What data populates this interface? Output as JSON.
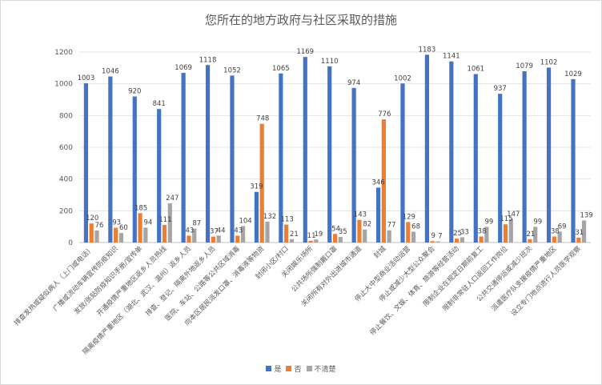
{
  "chart_data": {
    "type": "bar",
    "title": "您所在的地方政府与社区采取的措施",
    "ylim": [
      0,
      1200
    ],
    "yticks": [
      "0",
      "200",
      "400",
      "600",
      "800",
      "1000",
      "1200"
    ],
    "grid": true,
    "legend_position": "bottom",
    "colors": [
      "#4472C4",
      "#ED7D31",
      "#A5A5A5"
    ],
    "categories": [
      "排查发热或疑似病人（上门或电话）",
      "广播或流动车辆宣传防疫知识",
      "发放/张贴防疫知识手册/宣传单",
      "开通疫情严重地区返乡人员热线",
      "隔离疫情严重地区（湖北、武汉、温州）返乡人员",
      "排查、登记、隔离外地返乡人员",
      "医院、车站、公路等公共区域消毒",
      "向本区居民派发口罩、消毒液等物资",
      "封闭小区/村口",
      "关闭娱乐场所",
      "公共场所强制戴口罩",
      "关闭所有对外出进城市通道",
      "封城",
      "停止大中型商业活动运营",
      "停止或减少大型公众聚会",
      "停止餐饮、文娱、体育、旅游等经营活动",
      "限制企业在规定日期前复工",
      "限制非常驻人口返回工作岗位",
      "公共交通停运或减少班次",
      "派遣医疗队支援疫情严重地区",
      "设立专门地点进行人员医学观察"
    ],
    "series": [
      {
        "name": "是",
        "values": [
          1003,
          1046,
          920,
          841,
          1069,
          1118,
          1052,
          319,
          1065,
          1169,
          1110,
          974,
          346,
          1002,
          1183,
          1141,
          1061,
          937,
          1079,
          1102,
          1029
        ]
      },
      {
        "name": "否",
        "values": [
          120,
          93,
          185,
          111,
          43,
          37,
          43,
          748,
          113,
          11,
          54,
          143,
          776,
          129,
          9,
          25,
          38,
          115,
          21,
          38,
          31
        ]
      },
      {
        "name": "不清楚",
        "values": [
          76,
          60,
          94,
          247,
          87,
          44,
          104,
          132,
          21,
          19,
          35,
          82,
          77,
          68,
          7,
          33,
          99,
          147,
          99,
          69,
          139
        ]
      }
    ]
  }
}
